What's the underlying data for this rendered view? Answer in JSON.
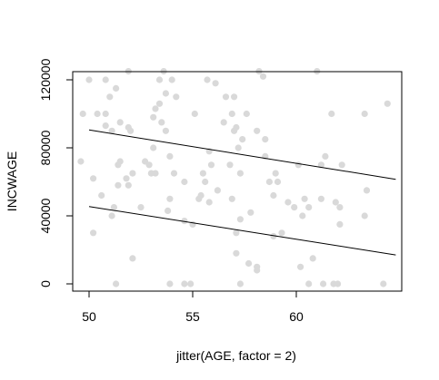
{
  "chart_data": {
    "type": "scatter",
    "title": "",
    "xlabel": "jitter(AGE, factor = 2)",
    "ylabel": "INCWAGE",
    "xlim": [
      49.2,
      64.8
    ],
    "ylim": [
      -3500,
      126000
    ],
    "xticks": [
      50,
      55,
      60
    ],
    "yticks": [
      0,
      40000,
      80000,
      120000
    ],
    "xtick_labels": [
      "50",
      "55",
      "60"
    ],
    "ytick_labels": [
      "0",
      "40000",
      "80000",
      "120000"
    ],
    "grid": false,
    "point_color": "#d9d9d9",
    "line_color": "#000000",
    "points": [
      {
        "x": 50.0,
        "y": 120000
      },
      {
        "x": 50.8,
        "y": 120000
      },
      {
        "x": 49.7,
        "y": 100000
      },
      {
        "x": 50.4,
        "y": 100000
      },
      {
        "x": 50.8,
        "y": 100000
      },
      {
        "x": 51.0,
        "y": 110000
      },
      {
        "x": 51.3,
        "y": 115000
      },
      {
        "x": 50.8,
        "y": 93000
      },
      {
        "x": 51.5,
        "y": 95000
      },
      {
        "x": 51.9,
        "y": 92000
      },
      {
        "x": 52.0,
        "y": 90000
      },
      {
        "x": 51.1,
        "y": 90000
      },
      {
        "x": 49.6,
        "y": 72000
      },
      {
        "x": 51.4,
        "y": 70000
      },
      {
        "x": 51.5,
        "y": 72000
      },
      {
        "x": 52.7,
        "y": 72000
      },
      {
        "x": 52.9,
        "y": 70000
      },
      {
        "x": 52.1,
        "y": 65000
      },
      {
        "x": 53.0,
        "y": 65000
      },
      {
        "x": 50.2,
        "y": 62000
      },
      {
        "x": 51.8,
        "y": 62000
      },
      {
        "x": 51.4,
        "y": 58000
      },
      {
        "x": 51.9,
        "y": 58000
      },
      {
        "x": 50.6,
        "y": 52000
      },
      {
        "x": 51.2,
        "y": 45000
      },
      {
        "x": 51.1,
        "y": 40000
      },
      {
        "x": 50.2,
        "y": 30000
      },
      {
        "x": 52.5,
        "y": 45000
      },
      {
        "x": 52.1,
        "y": 15000
      },
      {
        "x": 51.3,
        "y": 0
      },
      {
        "x": 51.9,
        "y": 125000
      },
      {
        "x": 53.4,
        "y": 120000
      },
      {
        "x": 53.6,
        "y": 125000
      },
      {
        "x": 53.7,
        "y": 112000
      },
      {
        "x": 54.2,
        "y": 110000
      },
      {
        "x": 54.0,
        "y": 120000
      },
      {
        "x": 53.2,
        "y": 103000
      },
      {
        "x": 53.4,
        "y": 106000
      },
      {
        "x": 53.1,
        "y": 98000
      },
      {
        "x": 53.5,
        "y": 95000
      },
      {
        "x": 53.7,
        "y": 90000
      },
      {
        "x": 53.1,
        "y": 80000
      },
      {
        "x": 53.9,
        "y": 75000
      },
      {
        "x": 54.1,
        "y": 65000
      },
      {
        "x": 53.2,
        "y": 65000
      },
      {
        "x": 54.6,
        "y": 60000
      },
      {
        "x": 53.9,
        "y": 50000
      },
      {
        "x": 53.8,
        "y": 43000
      },
      {
        "x": 54.6,
        "y": 37000
      },
      {
        "x": 55.0,
        "y": 35000
      },
      {
        "x": 55.3,
        "y": 50000
      },
      {
        "x": 55.4,
        "y": 52000
      },
      {
        "x": 55.6,
        "y": 60000
      },
      {
        "x": 55.5,
        "y": 65000
      },
      {
        "x": 55.9,
        "y": 70000
      },
      {
        "x": 55.8,
        "y": 78000
      },
      {
        "x": 56.2,
        "y": 55000
      },
      {
        "x": 55.8,
        "y": 48000
      },
      {
        "x": 55.1,
        "y": 100000
      },
      {
        "x": 55.7,
        "y": 120000
      },
      {
        "x": 56.1,
        "y": 118000
      },
      {
        "x": 56.6,
        "y": 110000
      },
      {
        "x": 57.0,
        "y": 110000
      },
      {
        "x": 56.9,
        "y": 100000
      },
      {
        "x": 56.5,
        "y": 95000
      },
      {
        "x": 57.1,
        "y": 92000
      },
      {
        "x": 57.4,
        "y": 85000
      },
      {
        "x": 57.6,
        "y": 100000
      },
      {
        "x": 57.0,
        "y": 90000
      },
      {
        "x": 57.2,
        "y": 80000
      },
      {
        "x": 56.8,
        "y": 70000
      },
      {
        "x": 57.3,
        "y": 65000
      },
      {
        "x": 56.9,
        "y": 50000
      },
      {
        "x": 57.3,
        "y": 38000
      },
      {
        "x": 57.8,
        "y": 42000
      },
      {
        "x": 57.1,
        "y": 30000
      },
      {
        "x": 57.1,
        "y": 18000
      },
      {
        "x": 57.7,
        "y": 12000
      },
      {
        "x": 58.1,
        "y": 10000
      },
      {
        "x": 58.1,
        "y": 8000
      },
      {
        "x": 58.2,
        "y": 125000
      },
      {
        "x": 58.4,
        "y": 122000
      },
      {
        "x": 58.1,
        "y": 90000
      },
      {
        "x": 58.5,
        "y": 85000
      },
      {
        "x": 58.5,
        "y": 75000
      },
      {
        "x": 58.7,
        "y": 60000
      },
      {
        "x": 58.9,
        "y": 52000
      },
      {
        "x": 59.0,
        "y": 65000
      },
      {
        "x": 59.1,
        "y": 60000
      },
      {
        "x": 59.6,
        "y": 48000
      },
      {
        "x": 60.1,
        "y": 70000
      },
      {
        "x": 59.9,
        "y": 45000
      },
      {
        "x": 60.4,
        "y": 50000
      },
      {
        "x": 60.6,
        "y": 45000
      },
      {
        "x": 60.3,
        "y": 40000
      },
      {
        "x": 59.3,
        "y": 30000
      },
      {
        "x": 58.9,
        "y": 28000
      },
      {
        "x": 60.2,
        "y": 10000
      },
      {
        "x": 60.8,
        "y": 15000
      },
      {
        "x": 61.0,
        "y": 125000
      },
      {
        "x": 61.2,
        "y": 70000
      },
      {
        "x": 61.4,
        "y": 75000
      },
      {
        "x": 61.2,
        "y": 50000
      },
      {
        "x": 61.7,
        "y": 100000
      },
      {
        "x": 61.9,
        "y": 48000
      },
      {
        "x": 62.1,
        "y": 45000
      },
      {
        "x": 62.2,
        "y": 70000
      },
      {
        "x": 62.1,
        "y": 35000
      },
      {
        "x": 61.3,
        "y": 0
      },
      {
        "x": 61.8,
        "y": 0
      },
      {
        "x": 62.0,
        "y": 0
      },
      {
        "x": 63.3,
        "y": 100000
      },
      {
        "x": 63.4,
        "y": 55000
      },
      {
        "x": 63.3,
        "y": 40000
      },
      {
        "x": 64.2,
        "y": 0
      },
      {
        "x": 64.4,
        "y": 106000
      },
      {
        "x": 53.9,
        "y": 0
      },
      {
        "x": 54.6,
        "y": 0
      },
      {
        "x": 54.9,
        "y": 0
      },
      {
        "x": 57.3,
        "y": 0
      },
      {
        "x": 60.6,
        "y": 0
      }
    ],
    "lines": [
      {
        "x": [
          50,
          64.8
        ],
        "y": [
          90500,
          61500
        ]
      },
      {
        "x": [
          50,
          64.8
        ],
        "y": [
          45500,
          17000
        ]
      }
    ]
  }
}
